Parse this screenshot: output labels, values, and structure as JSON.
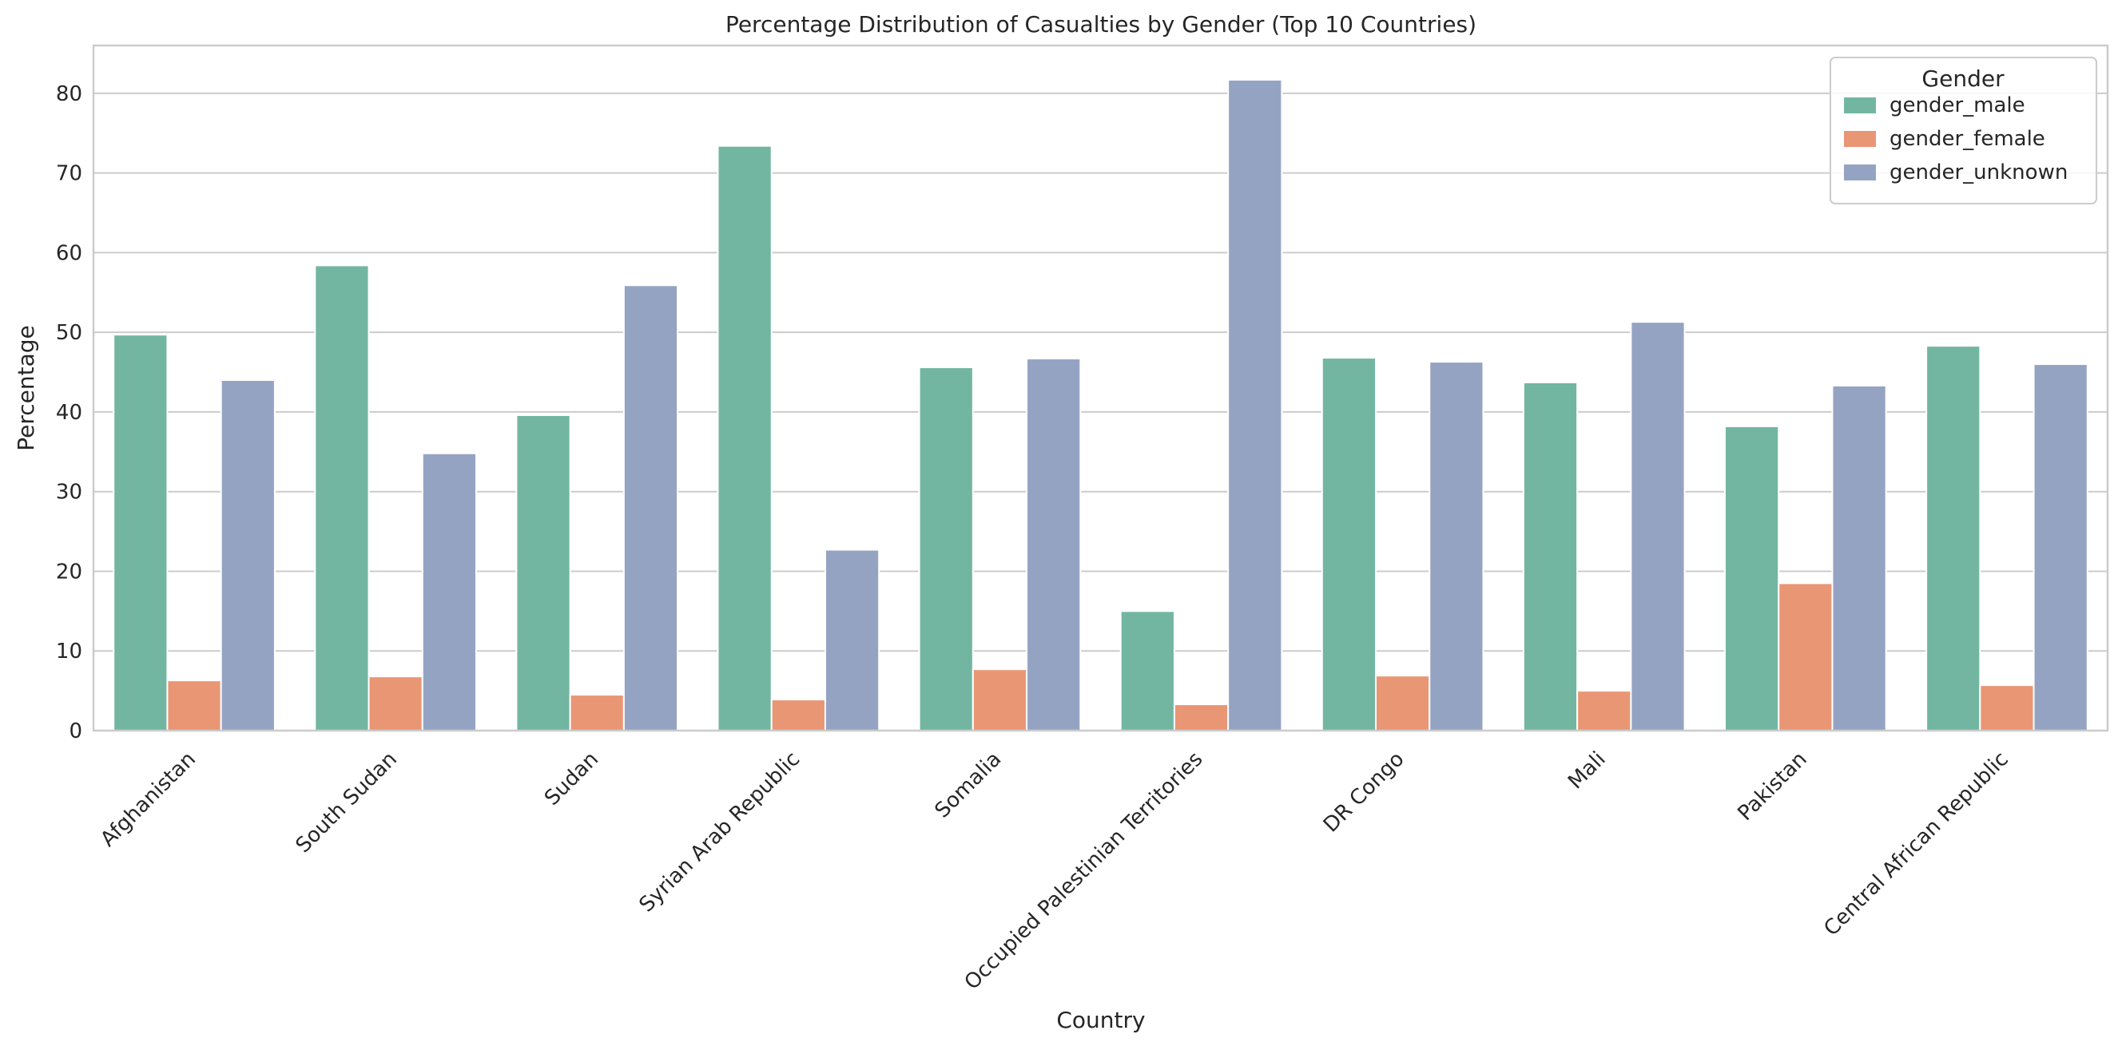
{
  "chart_data": {
    "type": "bar",
    "title": "Percentage Distribution of Casualties by Gender (Top 10 Countries)",
    "xlabel": "Country",
    "ylabel": "Percentage",
    "ylim": [
      0,
      86
    ],
    "yticks": [
      0,
      10,
      20,
      30,
      40,
      50,
      60,
      70,
      80
    ],
    "grid": "horizontal",
    "legend_position": "top-right",
    "legend_title": "Gender",
    "categories": [
      "Afghanistan",
      "South Sudan",
      "Sudan",
      "Syrian Arab Republic",
      "Somalia",
      "Occupied Palestinian Territories",
      "DR Congo",
      "Mali",
      "Pakistan",
      "Central African Republic"
    ],
    "series": [
      {
        "name": "gender_male",
        "color": "#72b6a1",
        "values": [
          49.7,
          58.4,
          39.6,
          73.4,
          45.6,
          15.0,
          46.8,
          43.7,
          38.2,
          48.3
        ]
      },
      {
        "name": "gender_female",
        "color": "#e99675",
        "values": [
          6.3,
          6.8,
          4.5,
          3.9,
          7.7,
          3.3,
          6.9,
          5.0,
          18.5,
          5.7
        ]
      },
      {
        "name": "gender_unknown",
        "color": "#95a3c3",
        "values": [
          44.0,
          34.8,
          55.9,
          22.7,
          46.7,
          81.7,
          46.3,
          51.3,
          43.3,
          46.0
        ]
      }
    ]
  }
}
